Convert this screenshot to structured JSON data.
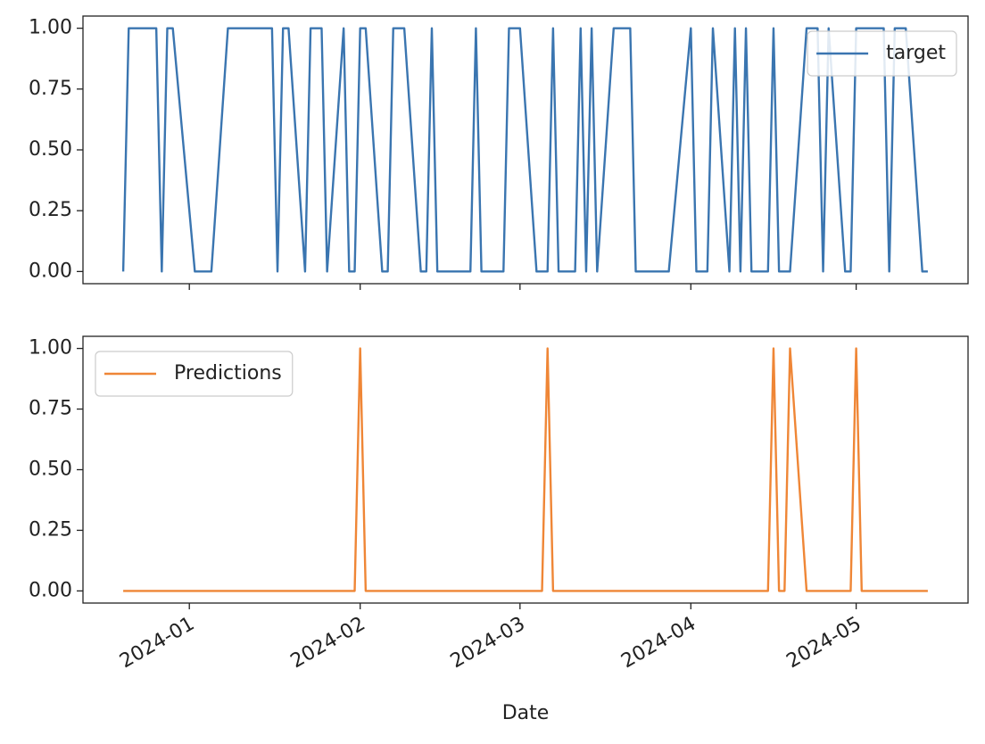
{
  "chart_data": [
    {
      "type": "line",
      "x": [
        -12,
        -11,
        -10,
        -6,
        -5,
        -4,
        -3,
        1,
        2,
        3,
        4,
        7,
        8,
        9,
        10,
        11,
        15,
        16,
        17,
        18,
        21,
        22,
        23,
        24,
        25,
        28,
        29,
        30,
        31,
        32,
        35,
        36,
        37,
        38,
        39,
        42,
        43,
        44,
        45,
        46,
        50,
        51,
        52,
        53,
        56,
        57,
        58,
        59,
        60,
        63,
        64,
        65,
        66,
        67,
        70,
        71,
        72,
        73,
        74,
        77,
        78,
        79,
        80,
        81,
        84,
        85,
        86,
        87,
        91,
        92,
        93,
        94,
        95,
        98,
        99,
        100,
        101,
        102,
        105,
        106,
        107,
        108,
        109,
        112,
        113,
        114,
        115,
        116,
        119,
        120,
        121,
        122,
        123,
        126,
        127,
        128,
        129,
        130,
        133,
        134
      ],
      "series": [
        {
          "name": "target",
          "color": "#3a75b0",
          "values": [
            0,
            1,
            1,
            1,
            0,
            1,
            1,
            0,
            0,
            0,
            0,
            1,
            1,
            1,
            1,
            1,
            1,
            0,
            1,
            1,
            0,
            1,
            1,
            1,
            0,
            1,
            0,
            0,
            1,
            1,
            0,
            0,
            1,
            1,
            1,
            0,
            0,
            1,
            0,
            0,
            0,
            0,
            1,
            0,
            0,
            0,
            1,
            1,
            1,
            0,
            0,
            0,
            1,
            0,
            0,
            1,
            0,
            1,
            0,
            1,
            1,
            1,
            1,
            0,
            0,
            0,
            0,
            0,
            1,
            0,
            0,
            0,
            1,
            0,
            1,
            0,
            1,
            0,
            0,
            1,
            0,
            0,
            0,
            1,
            1,
            1,
            0,
            1,
            0,
            0,
            1,
            1,
            1,
            1,
            0,
            1,
            1,
            1,
            0,
            0
          ]
        }
      ],
      "xlim": [
        -19.3,
        141.3
      ],
      "xticks": [
        0,
        31,
        60,
        91,
        121
      ],
      "ylim": [
        -0.05,
        1.05
      ],
      "yticks": [
        {
          "value": 0,
          "label": "0.00"
        },
        {
          "value": 0.25,
          "label": "0.25"
        },
        {
          "value": 0.5,
          "label": "0.50"
        },
        {
          "value": 0.75,
          "label": "0.75"
        },
        {
          "value": 1,
          "label": "1.00"
        }
      ],
      "legend": "upper right"
    },
    {
      "type": "line",
      "x": [
        -12,
        -11,
        -10,
        -6,
        -5,
        -4,
        -3,
        1,
        2,
        3,
        4,
        7,
        8,
        9,
        10,
        11,
        15,
        16,
        17,
        18,
        21,
        22,
        23,
        24,
        25,
        28,
        29,
        30,
        31,
        32,
        35,
        36,
        37,
        38,
        39,
        42,
        43,
        44,
        45,
        46,
        50,
        51,
        52,
        53,
        56,
        57,
        58,
        59,
        60,
        63,
        64,
        65,
        66,
        67,
        70,
        71,
        72,
        73,
        74,
        77,
        78,
        79,
        80,
        81,
        84,
        85,
        86,
        87,
        91,
        92,
        93,
        94,
        95,
        98,
        99,
        100,
        101,
        102,
        105,
        106,
        107,
        108,
        109,
        112,
        113,
        114,
        115,
        116,
        119,
        120,
        121,
        122,
        123,
        126,
        127,
        128,
        129,
        130,
        133,
        134
      ],
      "series": [
        {
          "name": "Predictions",
          "color": "#ef8636",
          "values": [
            0,
            0,
            0,
            0,
            0,
            0,
            0,
            0,
            0,
            0,
            0,
            0,
            0,
            0,
            0,
            0,
            0,
            0,
            0,
            0,
            0,
            0,
            0,
            0,
            0,
            0,
            0,
            0,
            1,
            0,
            0,
            0,
            0,
            0,
            0,
            0,
            0,
            0,
            0,
            0,
            0,
            0,
            0,
            0,
            0,
            0,
            0,
            0,
            0,
            0,
            0,
            1,
            0,
            0,
            0,
            0,
            0,
            0,
            0,
            0,
            0,
            0,
            0,
            0,
            0,
            0,
            0,
            0,
            0,
            0,
            0,
            0,
            0,
            0,
            0,
            0,
            0,
            0,
            0,
            1,
            0,
            0,
            1,
            0,
            0,
            0,
            0,
            0,
            0,
            0,
            1,
            0,
            0,
            0,
            0,
            0,
            0,
            0,
            0,
            0
          ]
        }
      ],
      "xlim": [
        -19.3,
        141.3
      ],
      "xticks": [
        {
          "value": 0,
          "label": "2024-01"
        },
        {
          "value": 31,
          "label": "2024-02"
        },
        {
          "value": 60,
          "label": "2024-03"
        },
        {
          "value": 91,
          "label": "2024-04"
        },
        {
          "value": 121,
          "label": "2024-05"
        }
      ],
      "xlabel": "Date",
      "ylim": [
        -0.05,
        1.05
      ],
      "yticks": [
        {
          "value": 0,
          "label": "0.00"
        },
        {
          "value": 0.25,
          "label": "0.25"
        },
        {
          "value": 0.5,
          "label": "0.50"
        },
        {
          "value": 0.75,
          "label": "0.75"
        },
        {
          "value": 1,
          "label": "1.00"
        }
      ],
      "legend": "upper left"
    }
  ]
}
